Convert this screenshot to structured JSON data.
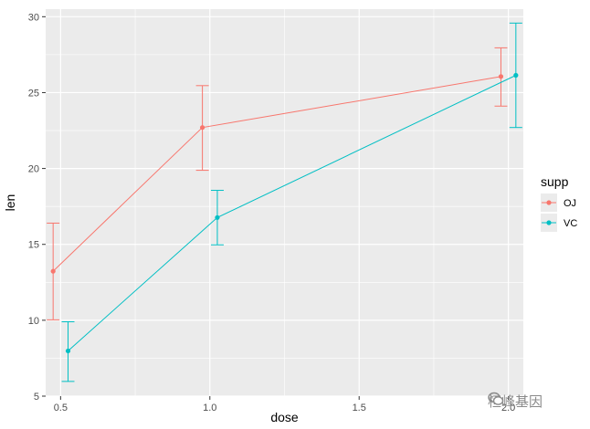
{
  "chart_data": {
    "type": "line",
    "title": "",
    "xlabel": "dose",
    "ylabel": "len",
    "xlim": [
      0.45,
      2.05
    ],
    "ylim": [
      5,
      30.5
    ],
    "x_ticks": [
      0.5,
      1.0,
      1.5,
      2.0
    ],
    "x_tick_labels": [
      "0.5",
      "1.0",
      "1.5",
      "2.0"
    ],
    "y_ticks": [
      5,
      10,
      15,
      20,
      25,
      30
    ],
    "y_tick_labels": [
      "5",
      "10",
      "15",
      "20",
      "25",
      "30"
    ],
    "grid": true,
    "legend": {
      "title": "supp",
      "placement": "right"
    },
    "series": [
      {
        "name": "OJ",
        "color": "#F8766D",
        "x": [
          0.5,
          1.0,
          2.0
        ],
        "x_plot": [
          0.475,
          0.975,
          1.975
        ],
        "y": [
          13.23,
          22.7,
          26.06
        ],
        "err_low": [
          10.03,
          19.88,
          24.11
        ],
        "err_high": [
          16.4,
          25.46,
          27.95
        ]
      },
      {
        "name": "VC",
        "color": "#00BFC4",
        "x": [
          0.5,
          1.0,
          2.0
        ],
        "x_plot": [
          0.525,
          1.025,
          2.025
        ],
        "y": [
          7.98,
          16.77,
          26.14
        ],
        "err_low": [
          5.97,
          14.97,
          22.7
        ],
        "err_high": [
          9.9,
          18.56,
          29.58
        ]
      }
    ]
  },
  "watermark": {
    "text": "桓峰基因",
    "icon": "wechat-icon"
  }
}
